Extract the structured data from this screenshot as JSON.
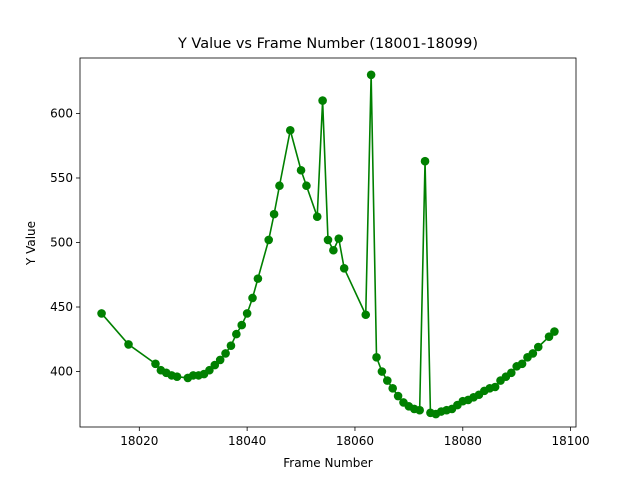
{
  "chart_data": {
    "type": "line",
    "title": "Y Value vs Frame Number (18001-18099)",
    "xlabel": "Frame Number",
    "ylabel": "Y Value",
    "xlim": [
      18009,
      18101
    ],
    "ylim": [
      357,
      643
    ],
    "xticks": [
      18020,
      18040,
      18060,
      18080,
      18100
    ],
    "yticks": [
      400,
      450,
      500,
      550,
      600
    ],
    "grid": false,
    "legend": "none",
    "series": [
      {
        "color": "#008000",
        "marker": "circle",
        "x": [
          18013,
          18018,
          18023,
          18024,
          18025,
          18026,
          18027,
          18029,
          18030,
          18031,
          18032,
          18033,
          18034,
          18035,
          18036,
          18037,
          18038,
          18039,
          18040,
          18041,
          18042,
          18044,
          18045,
          18046,
          18048,
          18050,
          18051,
          18053,
          18054,
          18055,
          18056,
          18057,
          18058,
          18062,
          18063,
          18064,
          18065,
          18066,
          18067,
          18068,
          18069,
          18070,
          18071,
          18072,
          18073,
          18074,
          18075,
          18076,
          18077,
          18078,
          18079,
          18080,
          18081,
          18082,
          18083,
          18084,
          18085,
          18086,
          18087,
          18088,
          18089,
          18090,
          18091,
          18092,
          18093,
          18094,
          18096,
          18097
        ],
        "y": [
          445,
          421,
          406,
          401,
          399,
          397,
          396,
          395,
          397,
          397,
          398,
          401,
          405,
          409,
          414,
          420,
          429,
          436,
          445,
          457,
          472,
          502,
          522,
          544,
          587,
          556,
          544,
          520,
          610,
          502,
          494,
          503,
          480,
          444,
          630,
          411,
          400,
          393,
          387,
          381,
          376,
          373,
          371,
          370,
          563,
          368,
          367,
          369,
          370,
          371,
          374,
          377,
          378,
          380,
          382,
          385,
          387,
          388,
          393,
          396,
          399,
          404,
          406,
          411,
          414,
          419,
          427,
          431
        ]
      }
    ]
  }
}
